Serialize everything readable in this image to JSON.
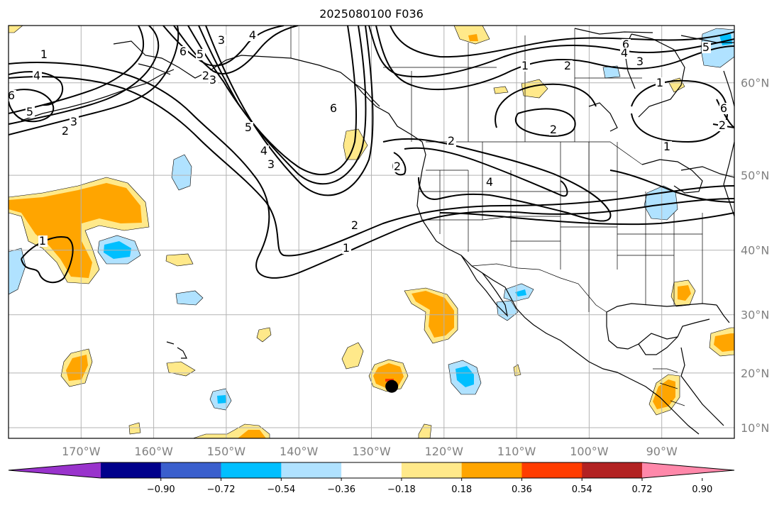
{
  "title": "2025080100 F036",
  "lat_labels": [
    {
      "deg": 60,
      "text": "60°N"
    },
    {
      "deg": 50,
      "text": "50°N"
    },
    {
      "deg": 40,
      "text": "40°N"
    },
    {
      "deg": 30,
      "text": "30°N"
    },
    {
      "deg": 20,
      "text": "20°N"
    },
    {
      "deg": 10,
      "text": "10°N"
    }
  ],
  "lon_labels": [
    {
      "deg": -170,
      "text": "170°W"
    },
    {
      "deg": -160,
      "text": "160°W"
    },
    {
      "deg": -150,
      "text": "150°W"
    },
    {
      "deg": -140,
      "text": "140°W"
    },
    {
      "deg": -130,
      "text": "130°W"
    },
    {
      "deg": -120,
      "text": "120°W"
    },
    {
      "deg": -110,
      "text": "110°W"
    },
    {
      "deg": -100,
      "text": "100°W"
    },
    {
      "deg": -90,
      "text": "90°W"
    }
  ],
  "colorbar": {
    "colors": [
      "#9933cc",
      "#00008b",
      "#3a5fcd",
      "#00bfff",
      "#b0e2ff",
      "#ffffff",
      "#ffe98a",
      "#ffa500",
      "#ff3c00",
      "#b22222",
      "#ff88aa"
    ],
    "ticks": [
      "−0.90",
      "−0.72",
      "−0.54",
      "−0.36",
      "−0.18",
      "0.18",
      "0.36",
      "0.54",
      "0.72",
      "0.90"
    ]
  },
  "contour_labels": [
    "1",
    "4",
    "6",
    "5",
    "3",
    "2",
    "6",
    "5",
    "3",
    "4",
    "2",
    "1",
    "6",
    "5",
    "4",
    "3",
    "2",
    "1",
    "6",
    "2",
    "3",
    "1",
    "2",
    "4",
    "2",
    "2",
    "1",
    "6",
    "5",
    "4",
    "3",
    "1",
    "2",
    "1"
  ],
  "storm_marker": {
    "lon": -127.2,
    "lat": 17.6
  }
}
